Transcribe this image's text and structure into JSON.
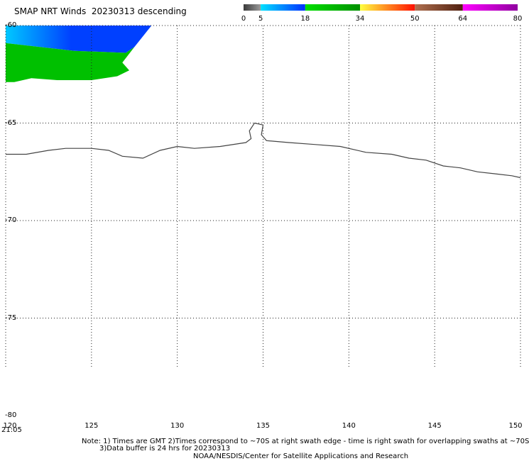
{
  "title": "SMAP NRT Winds  20230313 descending",
  "colorbar": {
    "tick_labels": [
      "0",
      "5",
      "18",
      "34",
      "50",
      "64",
      "80"
    ],
    "segments": [
      {
        "from": 0,
        "to": 5,
        "colors": [
          "#3a3a3a",
          "#9a9a9a"
        ]
      },
      {
        "from": 5,
        "to": 18,
        "colors": [
          "#00e0ff",
          "#0030ff"
        ]
      },
      {
        "from": 18,
        "to": 34,
        "colors": [
          "#00e000",
          "#009000"
        ]
      },
      {
        "from": 34,
        "to": 50,
        "colors": [
          "#ffff40",
          "#ff1000"
        ]
      },
      {
        "from": 50,
        "to": 64,
        "colors": [
          "#b07050",
          "#502010"
        ]
      },
      {
        "from": 64,
        "to": 80,
        "colors": [
          "#ff00ff",
          "#9000a0"
        ]
      }
    ]
  },
  "map": {
    "lon_range": [
      120,
      150
    ],
    "lat_range": [
      -60,
      -80
    ],
    "lon_ticks": [
      "120",
      "125",
      "130",
      "135",
      "140",
      "145",
      "150"
    ],
    "lat_ticks": [
      "-60",
      "-65",
      "-70",
      "-75",
      "-80"
    ],
    "swath_time": "21:05",
    "swath_colors": {
      "strong": "#0040ff",
      "light": "#00c8ff",
      "moderate": "#00c000"
    },
    "coastline": [
      [
        120.0,
        -66.6
      ],
      [
        121.2,
        -66.6
      ],
      [
        122.5,
        -66.4
      ],
      [
        123.5,
        -66.3
      ],
      [
        125.0,
        -66.3
      ],
      [
        126.0,
        -66.4
      ],
      [
        126.8,
        -66.7
      ],
      [
        128.0,
        -66.8
      ],
      [
        129.0,
        -66.4
      ],
      [
        130.0,
        -66.2
      ],
      [
        131.0,
        -66.3
      ],
      [
        132.5,
        -66.2
      ],
      [
        134.0,
        -66.0
      ],
      [
        134.3,
        -65.8
      ],
      [
        134.2,
        -65.4
      ],
      [
        134.5,
        -65.0
      ],
      [
        135.0,
        -65.1
      ],
      [
        134.9,
        -65.6
      ],
      [
        135.2,
        -65.9
      ],
      [
        136.5,
        -66.0
      ],
      [
        138.0,
        -66.1
      ],
      [
        139.5,
        -66.2
      ],
      [
        141.0,
        -66.5
      ],
      [
        142.5,
        -66.6
      ],
      [
        143.5,
        -66.8
      ],
      [
        144.5,
        -66.9
      ],
      [
        145.5,
        -67.2
      ],
      [
        146.5,
        -67.3
      ],
      [
        147.5,
        -67.5
      ],
      [
        148.5,
        -67.6
      ],
      [
        149.5,
        -67.7
      ],
      [
        150.0,
        -67.8
      ]
    ]
  },
  "notes": {
    "line1": "Note: 1) Times are GMT 2)Times correspond to ~70S at right swath edge - time is right swath for overlapping swaths at ~70S",
    "line2": "3)Data buffer is 24 hrs for 20230313",
    "line3": "NOAA/NESDIS/Center for Satellite Applications and Research"
  }
}
